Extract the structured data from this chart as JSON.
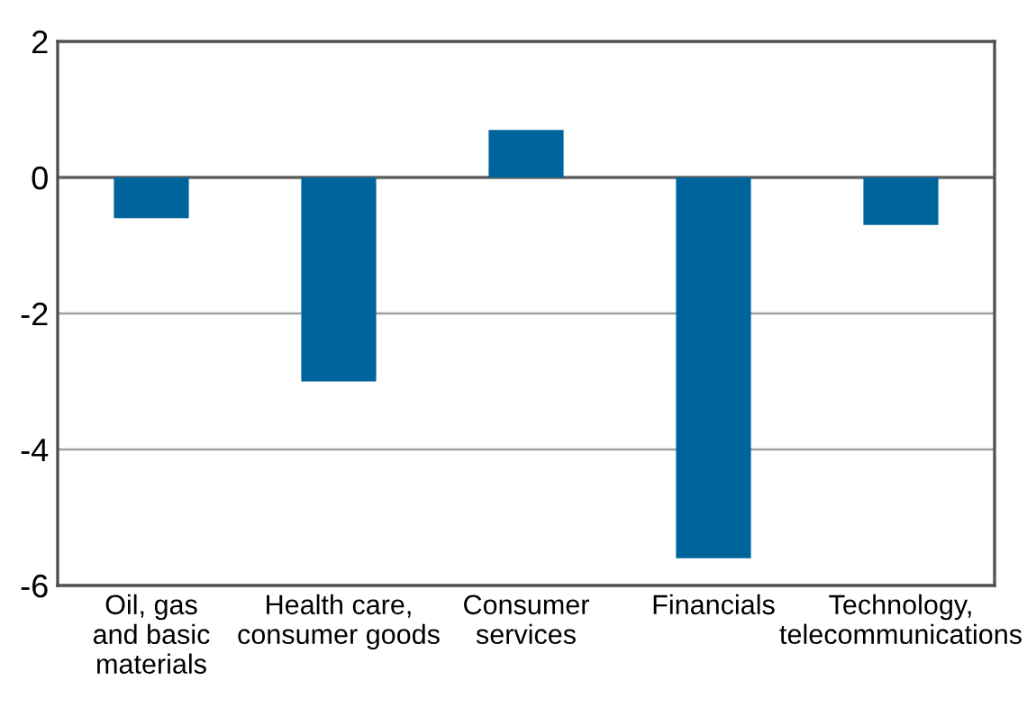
{
  "chart_data": {
    "type": "bar",
    "categories": [
      "Oil, gas\nand basic\nmaterials",
      "Health care,\nconsumer goods",
      "Consumer\nservices",
      "Financials",
      "Technology,\ntelecommunications"
    ],
    "values": [
      -0.6,
      -3.0,
      0.7,
      -5.6,
      -0.7
    ],
    "color": "#00649c",
    "ylim": [
      -6,
      2
    ],
    "yticks": [
      -6,
      -4,
      -2,
      0,
      2
    ],
    "grid": "y"
  }
}
